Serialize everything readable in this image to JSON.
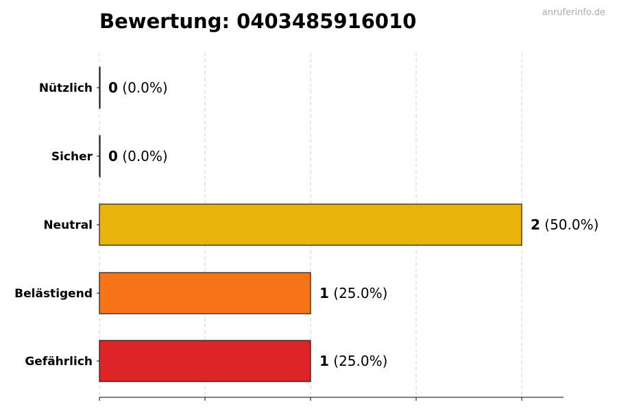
{
  "watermark": "anruferinfo.de",
  "chart_data": {
    "type": "bar",
    "orientation": "horizontal",
    "title": "Bewertung: 0403485916010",
    "xlabel": "",
    "ylabel": "",
    "xlim": [
      0,
      2.2
    ],
    "x_ticks": [
      0,
      0.5,
      1,
      1.5,
      2
    ],
    "grid": "vertical dashed",
    "categories": [
      "Nützlich",
      "Sicher",
      "Neutral",
      "Belästigend",
      "Gefährlich"
    ],
    "values": [
      0,
      0,
      2,
      1,
      1
    ],
    "percent_labels": [
      "(0.0%)",
      "(0.0%)",
      "(50.0%)",
      "(25.0%)",
      "(25.0%)"
    ],
    "colors": [
      "#4caf50",
      "#2196f3",
      "#e8b40c",
      "#f87418",
      "#dd2527"
    ]
  }
}
